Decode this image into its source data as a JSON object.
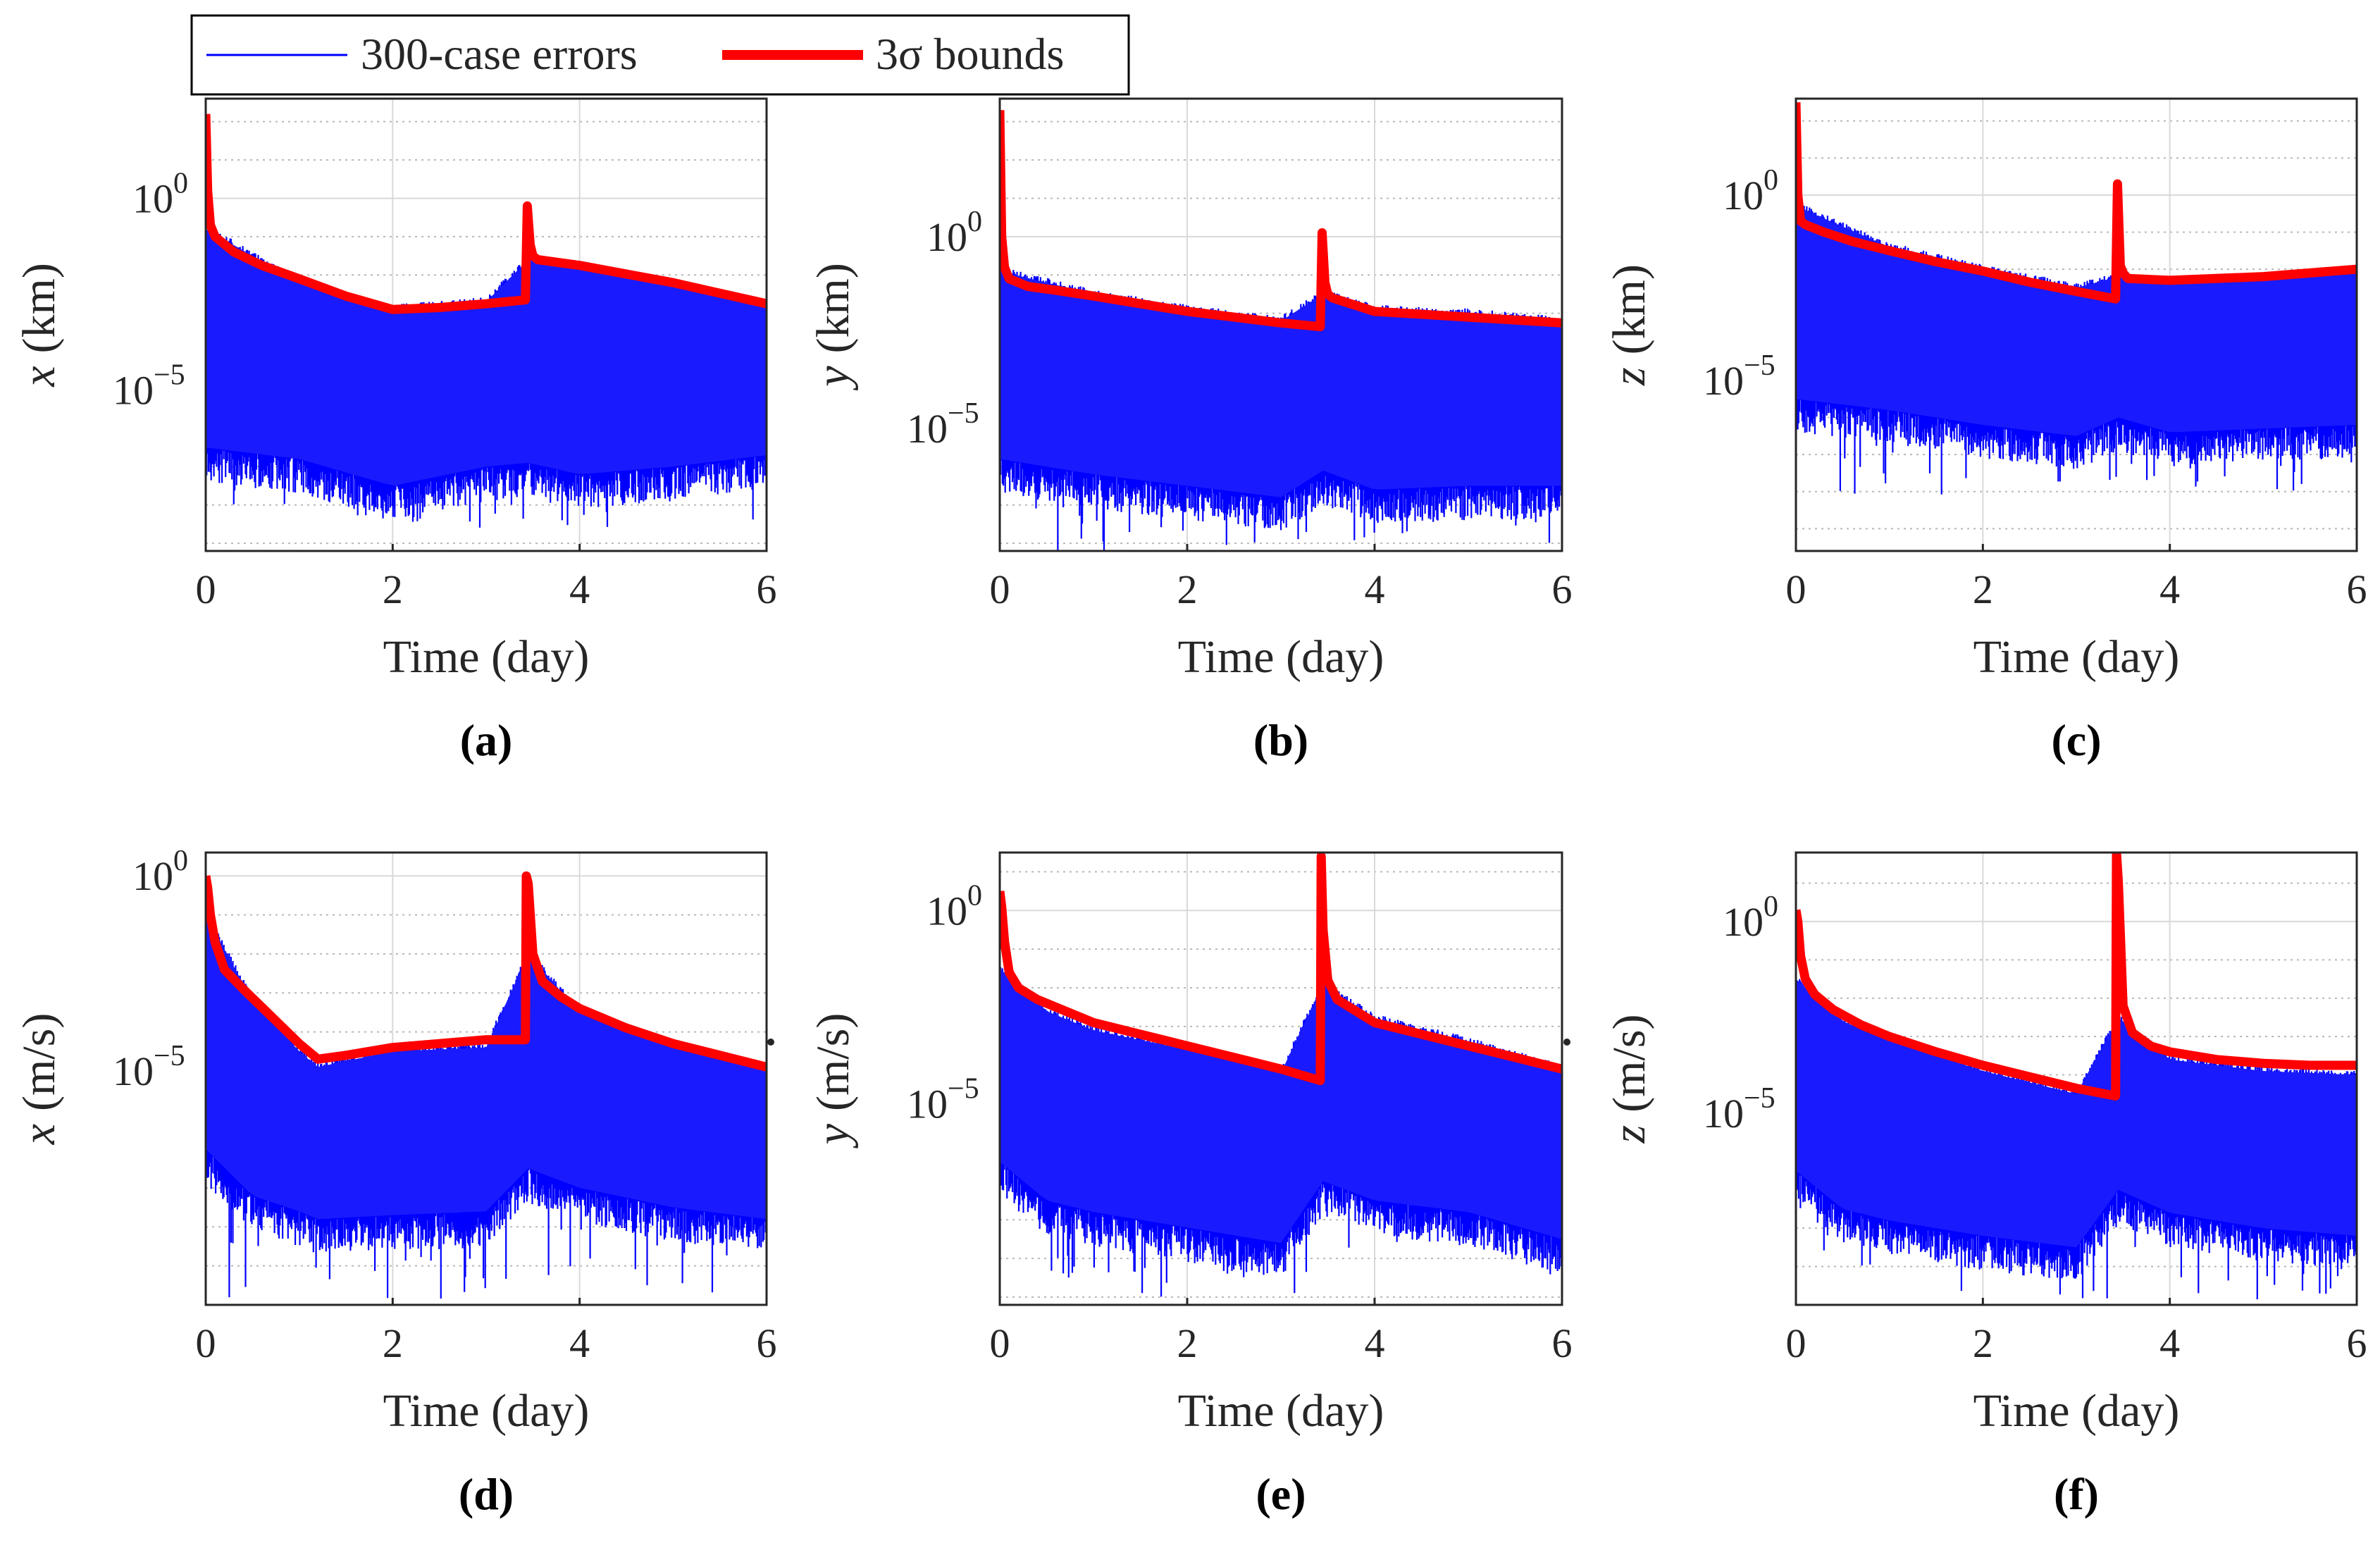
{
  "legend": {
    "entries": [
      {
        "label": "300-case errors",
        "color": "#0000ff"
      },
      {
        "label": "3σ bounds",
        "color": "#ff0000"
      }
    ]
  },
  "chart_data": [
    {
      "type": "line",
      "panel": "(a)",
      "variable": "x",
      "ylabel_var": "x",
      "ylabel_unit": "(km)",
      "xlabel": "Time (day)",
      "xlim": [
        0,
        6
      ],
      "xticks": [
        0,
        2,
        4,
        6
      ],
      "yscale": "log",
      "ylim_exp": [
        -9.2,
        2.6
      ],
      "ytick_exps": [
        0,
        -5
      ],
      "series": [
        {
          "name": "3σ bounds",
          "x": [
            0,
            0.02,
            0.05,
            0.1,
            0.3,
            0.6,
            1.0,
            1.5,
            2.0,
            2.5,
            3.0,
            3.42,
            3.44,
            3.47,
            3.5,
            3.55,
            4.0,
            5.0,
            6.0
          ],
          "log10_y": [
            2.2,
            0.2,
            -0.7,
            -1.0,
            -1.4,
            -1.75,
            -2.1,
            -2.55,
            -2.9,
            -2.85,
            -2.75,
            -2.65,
            -0.2,
            -1.2,
            -1.5,
            -1.6,
            -1.75,
            -2.2,
            -2.75
          ]
        },
        {
          "name": "300-case errors",
          "x": [
            0,
            1,
            2,
            3,
            3.45,
            4,
            5,
            6
          ],
          "log10_y_top": [
            -0.8,
            -2.2,
            -2.9,
            -2.7,
            -1.6,
            -1.8,
            -2.3,
            -2.8
          ],
          "log10_y_low": [
            -6.5,
            -6.8,
            -7.5,
            -7.0,
            -6.9,
            -7.2,
            -7.0,
            -6.7
          ],
          "log10_y_min": -8.6
        }
      ]
    },
    {
      "type": "line",
      "panel": "(b)",
      "variable": "y",
      "ylabel_var": "y",
      "ylabel_unit": "(km)",
      "xlabel": "Time (day)",
      "xlim": [
        0,
        6
      ],
      "xticks": [
        0,
        2,
        4,
        6
      ],
      "yscale": "log",
      "ylim_exp": [
        -8.2,
        3.6
      ],
      "ytick_exps": [
        0,
        -5
      ],
      "series": [
        {
          "name": "3σ bounds",
          "x": [
            0,
            0.02,
            0.05,
            0.1,
            0.3,
            0.6,
            1.0,
            1.5,
            2.0,
            2.5,
            3.0,
            3.42,
            3.44,
            3.47,
            3.5,
            3.55,
            4.0,
            5.0,
            6.0
          ],
          "log10_y": [
            3.3,
            0.0,
            -0.8,
            -1.1,
            -1.3,
            -1.4,
            -1.55,
            -1.75,
            -1.95,
            -2.1,
            -2.25,
            -2.35,
            0.1,
            -1.2,
            -1.5,
            -1.6,
            -1.95,
            -2.1,
            -2.25
          ]
        },
        {
          "name": "300-case errors",
          "x": [
            0,
            1,
            2,
            3,
            3.45,
            4,
            5,
            6
          ],
          "log10_y_top": [
            -0.9,
            -1.5,
            -1.9,
            -2.2,
            -1.5,
            -1.9,
            -2.0,
            -2.2
          ],
          "log10_y_low": [
            -5.8,
            -6.2,
            -6.5,
            -6.8,
            -6.1,
            -6.6,
            -6.5,
            -6.5
          ],
          "log10_y_min": -8.2
        }
      ]
    },
    {
      "type": "line",
      "panel": "(c)",
      "variable": "z",
      "ylabel_var": "z",
      "ylabel_unit": "(km)",
      "xlabel": "Time (day)",
      "xlim": [
        0,
        6
      ],
      "xticks": [
        0,
        2,
        4,
        6
      ],
      "yscale": "log",
      "ylim_exp": [
        -9.6,
        2.6
      ],
      "ytick_exps": [
        0,
        -5
      ],
      "series": [
        {
          "name": "3σ bounds",
          "x": [
            0,
            0.02,
            0.05,
            0.1,
            0.3,
            0.6,
            1.0,
            1.5,
            2.0,
            2.5,
            3.0,
            3.42,
            3.44,
            3.47,
            3.5,
            3.55,
            4.0,
            5.0,
            6.0
          ],
          "log10_y": [
            2.5,
            0.0,
            -0.7,
            -0.8,
            -1.0,
            -1.25,
            -1.5,
            -1.8,
            -2.05,
            -2.35,
            -2.6,
            -2.8,
            0.3,
            -1.9,
            -2.1,
            -2.25,
            -2.3,
            -2.2,
            -2.0
          ]
        },
        {
          "name": "300-case errors",
          "x": [
            0,
            1,
            2,
            3,
            3.45,
            4,
            5,
            6
          ],
          "log10_y_top": [
            -0.3,
            -1.4,
            -2.0,
            -2.5,
            -2.2,
            -2.4,
            -2.3,
            -2.1
          ],
          "log10_y_low": [
            -5.5,
            -5.8,
            -6.2,
            -6.5,
            -6.0,
            -6.4,
            -6.3,
            -6.2
          ],
          "log10_y_min": -8.2
        }
      ]
    },
    {
      "type": "line",
      "panel": "(d)",
      "variable": "x-dot",
      "ylabel_var": "x",
      "ylabel_unit": "(m/s)",
      "xlabel": "Time (day)",
      "xlim": [
        0,
        6
      ],
      "xticks": [
        0,
        2,
        4,
        6
      ],
      "yscale": "log",
      "ylim_exp": [
        -11.0,
        0.6
      ],
      "ytick_exps": [
        0,
        -5
      ],
      "series": [
        {
          "name": "3σ bounds",
          "x": [
            0,
            0.02,
            0.05,
            0.1,
            0.2,
            0.4,
            0.7,
            1.0,
            1.2,
            1.5,
            2.0,
            2.5,
            3.0,
            3.42,
            3.43,
            3.45,
            3.5,
            3.6,
            3.8,
            4.0,
            4.5,
            5.0,
            5.5,
            6.0
          ],
          "log10_y": [
            0.0,
            -0.3,
            -1.0,
            -1.7,
            -2.4,
            -2.9,
            -3.6,
            -4.3,
            -4.7,
            -4.6,
            -4.4,
            -4.3,
            -4.2,
            -4.2,
            0.0,
            -0.2,
            -2.0,
            -2.7,
            -3.1,
            -3.4,
            -3.9,
            -4.3,
            -4.6,
            -4.9
          ]
        },
        {
          "name": "300-case errors",
          "x": [
            0,
            0.5,
            1.0,
            1.2,
            2.0,
            3.0,
            3.45,
            4.0,
            5.0,
            6.0
          ],
          "log10_y_top": [
            -1.0,
            -3.2,
            -4.5,
            -4.9,
            -4.5,
            -4.4,
            -2.0,
            -3.5,
            -4.4,
            -5.0
          ],
          "log10_y_low": [
            -7.0,
            -8.2,
            -8.6,
            -8.8,
            -8.7,
            -8.6,
            -7.5,
            -8.0,
            -8.5,
            -8.8
          ],
          "log10_y_min": -10.9
        }
      ]
    },
    {
      "type": "line",
      "panel": "(e)",
      "variable": "y-dot",
      "ylabel_var": "y",
      "ylabel_unit": "(m/s)",
      "xlabel": "Time (day)",
      "xlim": [
        0,
        6
      ],
      "xticks": [
        0,
        2,
        4,
        6
      ],
      "yscale": "log",
      "ylim_exp": [
        -10.2,
        1.5
      ],
      "ytick_exps": [
        0,
        -5
      ],
      "series": [
        {
          "name": "3σ bounds",
          "x": [
            0,
            0.02,
            0.05,
            0.1,
            0.2,
            0.4,
            0.7,
            1.0,
            1.5,
            2.0,
            2.5,
            3.0,
            3.42,
            3.43,
            3.45,
            3.5,
            3.6,
            3.8,
            4.0,
            4.5,
            5.0,
            5.5,
            6.0
          ],
          "log10_y": [
            0.5,
            0.1,
            -0.8,
            -1.6,
            -2.0,
            -2.3,
            -2.6,
            -2.9,
            -3.2,
            -3.5,
            -3.8,
            -4.1,
            -4.4,
            1.4,
            -0.5,
            -1.8,
            -2.3,
            -2.6,
            -2.9,
            -3.2,
            -3.5,
            -3.8,
            -4.1
          ]
        },
        {
          "name": "300-case errors",
          "x": [
            0,
            0.5,
            1.0,
            2.0,
            3.0,
            3.45,
            4.0,
            5.0,
            6.0
          ],
          "log10_y_top": [
            -1.5,
            -2.6,
            -3.1,
            -3.6,
            -4.2,
            -1.9,
            -2.8,
            -3.4,
            -4.1
          ],
          "log10_y_low": [
            -6.5,
            -7.5,
            -7.8,
            -8.2,
            -8.6,
            -7.0,
            -7.5,
            -7.8,
            -8.5
          ],
          "log10_y_min": -10.0
        }
      ]
    },
    {
      "type": "line",
      "panel": "(f)",
      "variable": "z-dot",
      "ylabel_var": "z",
      "ylabel_unit": "(m/s)",
      "xlabel": "Time (day)",
      "xlim": [
        0,
        6
      ],
      "xticks": [
        0,
        2,
        4,
        6
      ],
      "yscale": "log",
      "ylim_exp": [
        -10.0,
        1.8
      ],
      "ytick_exps": [
        0,
        -5
      ],
      "series": [
        {
          "name": "3σ bounds",
          "x": [
            0,
            0.02,
            0.05,
            0.1,
            0.2,
            0.4,
            0.7,
            1.0,
            1.5,
            2.0,
            2.5,
            3.0,
            3.42,
            3.43,
            3.45,
            3.5,
            3.6,
            3.8,
            4.0,
            4.5,
            5.0,
            5.5,
            6.0
          ],
          "log10_y": [
            0.3,
            0.0,
            -0.9,
            -1.5,
            -1.9,
            -2.3,
            -2.7,
            -3.0,
            -3.4,
            -3.75,
            -4.05,
            -4.35,
            -4.55,
            1.8,
            1.0,
            -2.2,
            -2.9,
            -3.25,
            -3.4,
            -3.6,
            -3.7,
            -3.75,
            -3.75
          ]
        },
        {
          "name": "300-case errors",
          "x": [
            0,
            0.5,
            1.0,
            2.0,
            3.0,
            3.45,
            4.0,
            5.0,
            6.0
          ],
          "log10_y_top": [
            -1.5,
            -2.6,
            -3.1,
            -3.9,
            -4.5,
            -2.5,
            -3.6,
            -3.9,
            -4.0
          ],
          "log10_y_low": [
            -6.5,
            -7.5,
            -7.8,
            -8.2,
            -8.5,
            -7.0,
            -7.6,
            -8.0,
            -8.2
          ],
          "log10_y_min": -9.9
        }
      ]
    }
  ]
}
